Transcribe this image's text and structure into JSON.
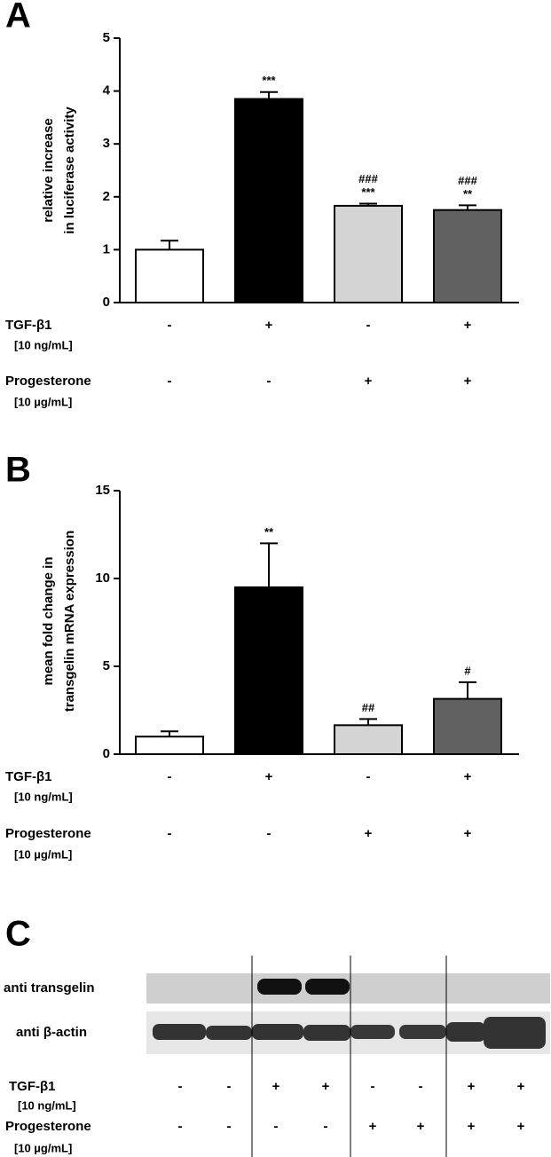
{
  "chart_data": [
    {
      "type": "bar",
      "panel": "A",
      "ylabel": [
        "relative increase",
        "in luciferase activity"
      ],
      "values": [
        1.0,
        3.85,
        1.83,
        1.75
      ],
      "errors": [
        0.17,
        0.13,
        0.04,
        0.09
      ],
      "colors": [
        "#ffffff",
        "#000000",
        "#d4d4d4",
        "#616161"
      ],
      "annotations": [
        [],
        [
          "***"
        ],
        [
          "###",
          "***"
        ],
        [
          "###",
          "**"
        ]
      ],
      "ylim": [
        0,
        5
      ],
      "yticks": [
        0,
        1,
        2,
        3,
        4,
        5
      ],
      "conditions": [
        {
          "name": "TGF-β1",
          "dose": "[10 ng/mL]",
          "signs": [
            "-",
            "+",
            "-",
            "+"
          ]
        },
        {
          "name": "Progesterone",
          "dose": "[10 µg/mL]",
          "signs": [
            "-",
            "-",
            "+",
            "+"
          ]
        }
      ]
    },
    {
      "type": "bar",
      "panel": "B",
      "ylabel": [
        "mean fold change in",
        "transgelin mRNA expression"
      ],
      "values": [
        1.0,
        9.5,
        1.65,
        3.15
      ],
      "errors": [
        0.3,
        2.5,
        0.35,
        0.95
      ],
      "colors": [
        "#ffffff",
        "#000000",
        "#d4d4d4",
        "#616161"
      ],
      "annotations": [
        [],
        [
          "**"
        ],
        [
          "##"
        ],
        [
          "#"
        ]
      ],
      "ylim": [
        0,
        15
      ],
      "yticks": [
        0,
        5,
        10,
        15
      ],
      "conditions": [
        {
          "name": "TGF-β1",
          "dose": "[10 ng/mL]",
          "signs": [
            "-",
            "+",
            "-",
            "+"
          ]
        },
        {
          "name": "Progesterone",
          "dose": "[10 µg/mL]",
          "signs": [
            "-",
            "-",
            "+",
            "+"
          ]
        }
      ]
    }
  ],
  "panel_c": {
    "panel": "C",
    "rows": [
      "anti transgelin",
      "anti β-actin"
    ],
    "conditions": [
      {
        "name": "TGF-β1",
        "dose": "[10 ng/mL]",
        "signs": [
          "-",
          "-",
          "+",
          "+",
          "-",
          "-",
          "+",
          "+"
        ]
      },
      {
        "name": "Progesterone",
        "dose": "[10 µg/mL]",
        "signs": [
          "-",
          "-",
          "-",
          "-",
          "+",
          "+",
          "+",
          "+"
        ]
      }
    ]
  }
}
